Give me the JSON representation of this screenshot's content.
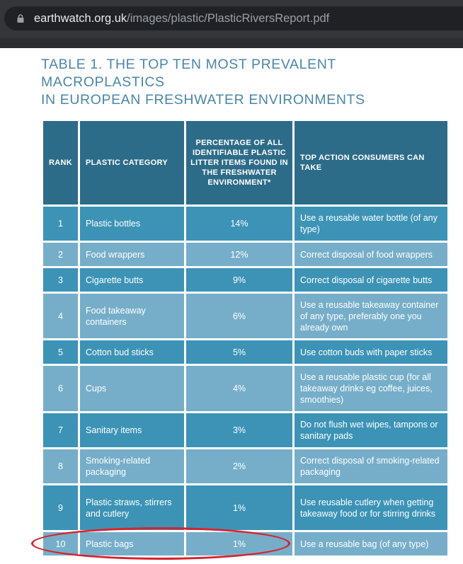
{
  "browser": {
    "url_host": "earthwatch.org.uk",
    "url_path": "/images/plastic/PlasticRiversReport.pdf",
    "lock_icon": "lock-icon"
  },
  "document": {
    "title_line1": "TABLE 1. THE TOP TEN MOST PREVALENT MACROPLASTICS",
    "title_line2": "IN EUROPEAN FRESHWATER ENVIRONMENTS",
    "table": {
      "headers": {
        "rank": "RANK",
        "category": "PLASTIC CATEGORY",
        "percentage": "PERCENTAGE OF ALL IDENTIFIABLE PLASTIC LITTER ITEMS FOUND IN THE FRESHWATER ENVIRONMENT*",
        "action": "TOP ACTION CONSUMERS CAN TAKE"
      },
      "rows": [
        {
          "rank": "1",
          "category": "Plastic bottles",
          "percentage": "14%",
          "action": "Use a reusable water bottle (of any type)"
        },
        {
          "rank": "2",
          "category": "Food wrappers",
          "percentage": "12%",
          "action": "Correct disposal of food wrappers"
        },
        {
          "rank": "3",
          "category": "Cigarette butts",
          "percentage": "9%",
          "action": "Correct disposal of cigarette butts"
        },
        {
          "rank": "4",
          "category": "Food takeaway containers",
          "percentage": "6%",
          "action": "Use a reusable takeaway container of any type, preferably one you already own"
        },
        {
          "rank": "5",
          "category": "Cotton bud sticks",
          "percentage": "5%",
          "action": "Use cotton buds with paper sticks"
        },
        {
          "rank": "6",
          "category": "Cups",
          "percentage": "4%",
          "action": "Use a reusable plastic cup (for all takeaway drinks eg coffee, juices, smoothies)"
        },
        {
          "rank": "7",
          "category": "Sanitary items",
          "percentage": "3%",
          "action": "Do not flush wet wipes, tampons or sanitary pads"
        },
        {
          "rank": "8",
          "category": "Smoking-related packaging",
          "percentage": "2%",
          "action": "Correct disposal of smoking-related packaging"
        },
        {
          "rank": "9",
          "category": "Plastic straws, stirrers and cutlery",
          "percentage": "1%",
          "action": "Use reusable cutlery when getting takeaway food or for stirring drinks"
        },
        {
          "rank": "10",
          "category": "Plastic bags",
          "percentage": "1%",
          "action": "Use a reusable bag (of any type)"
        }
      ]
    }
  },
  "colors": {
    "header_bg": "#2d6c89",
    "row_dark": "#3c93b6",
    "row_light": "#76aec9",
    "title": "#4a86a7",
    "highlight": "#d9212c"
  }
}
